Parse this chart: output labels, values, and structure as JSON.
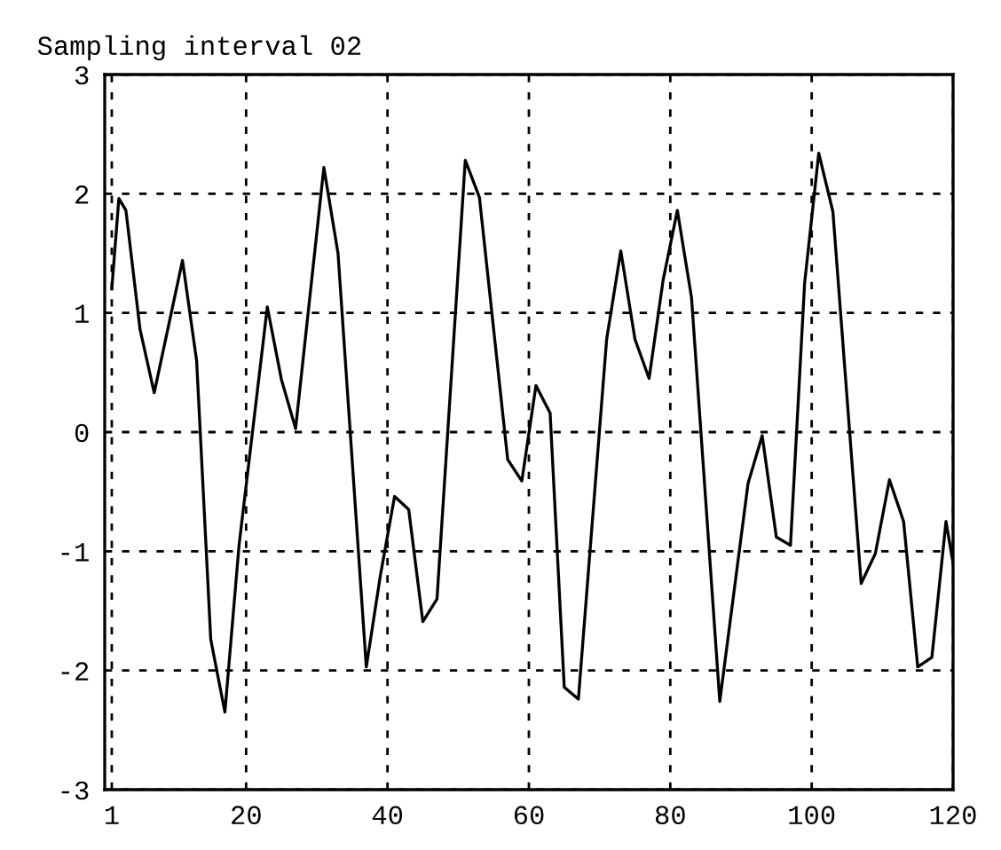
{
  "chart_data": {
    "type": "line",
    "title": "Sampling interval 02",
    "x": [
      1,
      2,
      3,
      5,
      7,
      11,
      13,
      15,
      17,
      19,
      23,
      25,
      27,
      31,
      33,
      37,
      39,
      41,
      43,
      45,
      47,
      51,
      53,
      57,
      59,
      61,
      63,
      65,
      67,
      71,
      73,
      75,
      77,
      79,
      81,
      83,
      87,
      91,
      93,
      95,
      97,
      99,
      101,
      103,
      107,
      109,
      111,
      113,
      115,
      117,
      119,
      120
    ],
    "series": [
      {
        "color": "#000000",
        "values": [
          1.2,
          1.96,
          1.86,
          0.86,
          0.33,
          1.44,
          0.6,
          -1.74,
          -2.35,
          -0.95,
          1.05,
          0.44,
          0.03,
          2.22,
          1.5,
          -1.97,
          -1.2,
          -0.54,
          -0.65,
          -1.59,
          -1.4,
          2.28,
          1.97,
          -0.23,
          -0.41,
          0.39,
          0.16,
          -2.14,
          -2.24,
          0.78,
          1.52,
          0.78,
          0.45,
          1.28,
          1.86,
          1.13,
          -2.26,
          -0.43,
          -0.03,
          -0.88,
          -0.95,
          1.25,
          2.34,
          1.85,
          -1.27,
          -1.02,
          -0.4,
          -0.75,
          -1.97,
          -1.89,
          -0.75,
          -1.1
        ]
      }
    ],
    "xlim": [
      0,
      120
    ],
    "ylim": [
      -3,
      3
    ],
    "xticks": [
      1,
      20,
      40,
      60,
      80,
      100,
      120
    ],
    "yticks": [
      -3,
      -2,
      -1,
      0,
      1,
      2,
      3
    ],
    "grid": true,
    "marker": "none",
    "line_style": "solid",
    "legend": false
  }
}
